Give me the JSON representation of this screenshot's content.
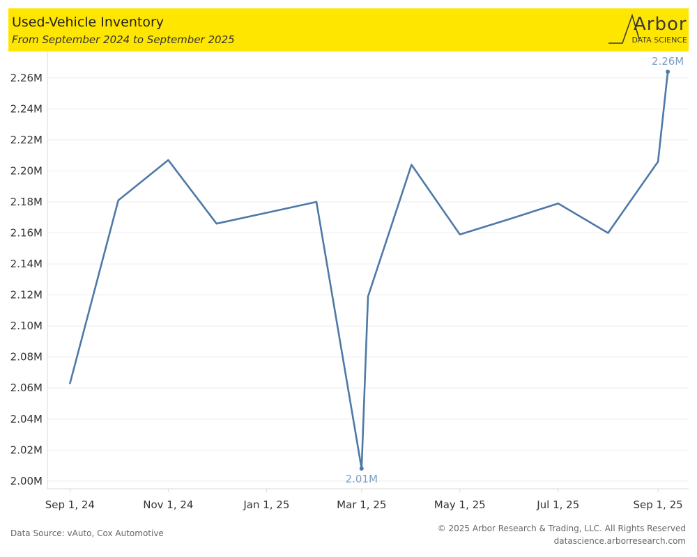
{
  "header": {
    "title": "Used-Vehicle Inventory",
    "subtitle": "From September 2024 to September 2025"
  },
  "logo": {
    "word": "Arbor",
    "sub": "DATA SCIENCE"
  },
  "footer": {
    "source": "Data Source: vAuto, Cox Automotive",
    "copyright": "© 2025 Arbor Research & Trading, LLC. All Rights Reserved",
    "site": "datascience.arborresearch.com"
  },
  "colors": {
    "banner": "#ffe600",
    "line": "#4e79a7",
    "label": "#7b9cc2"
  },
  "chart_data": {
    "type": "line",
    "title": "Used-Vehicle Inventory",
    "subtitle": "From September 2024 to September 2025",
    "xlabel": "",
    "ylabel": "",
    "x_ticks": [
      "Sep 1, 24",
      "Nov 1, 24",
      "Jan 1, 25",
      "Mar 1, 25",
      "May 1, 25",
      "Jul 1, 25",
      "Sep 1, 25"
    ],
    "y_ticks": [
      "2.00M",
      "2.02M",
      "2.04M",
      "2.06M",
      "2.08M",
      "2.10M",
      "2.12M",
      "2.14M",
      "2.16M",
      "2.18M",
      "2.20M",
      "2.22M",
      "2.24M",
      "2.26M"
    ],
    "ylim": [
      1.995,
      2.277
    ],
    "grid": true,
    "series": [
      {
        "x": [
          "2024-09-01",
          "2024-10-01",
          "2024-11-01",
          "2024-12-01",
          "2025-01-01",
          "2025-02-01",
          "2025-03-01",
          "2025-03-05",
          "2025-04-01",
          "2025-05-01",
          "2025-06-01",
          "2025-07-01",
          "2025-08-01",
          "2025-09-01",
          "2025-09-01"
        ],
        "values": [
          2.063,
          2.181,
          2.207,
          2.166,
          2.173,
          2.18,
          2.008,
          2.119,
          2.204,
          2.159,
          2.169,
          2.179,
          2.16,
          2.206,
          2.264
        ]
      }
    ],
    "annotations": [
      {
        "text": "2.01M",
        "point": 6,
        "position": "below"
      },
      {
        "text": "2.26M",
        "point": 14,
        "position": "above"
      }
    ]
  }
}
